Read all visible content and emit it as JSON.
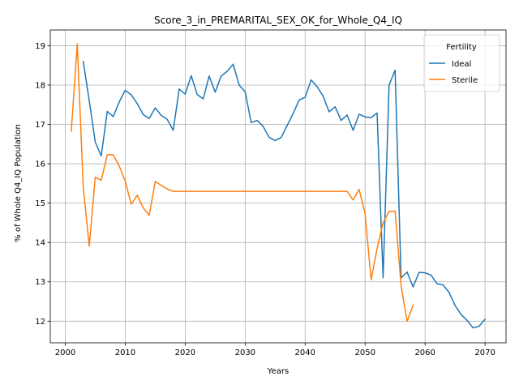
{
  "chart_data": {
    "type": "line",
    "title": "Score_3_in_PREMARITAL_SEX_OK_for_Whole_Q4_IQ",
    "xlabel": "Years",
    "ylabel": "% of Whole Q4_IQ Population",
    "xlim": [
      1997.5,
      2073.5
    ],
    "ylim": [
      11.45,
      19.4
    ],
    "xticks": [
      2000,
      2010,
      2020,
      2030,
      2040,
      2050,
      2060,
      2070
    ],
    "yticks": [
      12,
      13,
      14,
      15,
      16,
      17,
      18,
      19
    ],
    "grid": true,
    "legend": {
      "title": "Fertility",
      "placement": "top-right"
    },
    "series": [
      {
        "name": "Ideal",
        "color": "#1f77b4",
        "x": [
          2003,
          2004,
          2005,
          2006,
          2007,
          2008,
          2009,
          2010,
          2011,
          2012,
          2013,
          2014,
          2015,
          2016,
          2017,
          2018,
          2019,
          2020,
          2021,
          2022,
          2023,
          2024,
          2025,
          2026,
          2027,
          2028,
          2029,
          2030,
          2031,
          2032,
          2033,
          2034,
          2035,
          2036,
          2037,
          2038,
          2039,
          2040,
          2041,
          2042,
          2043,
          2044,
          2045,
          2046,
          2047,
          2048,
          2049,
          2050,
          2051,
          2052,
          2053,
          2054,
          2055,
          2056,
          2057,
          2058,
          2059,
          2060,
          2061,
          2062,
          2063,
          2064,
          2065,
          2066,
          2067,
          2068,
          2069,
          2070
        ],
        "y": [
          18.6,
          17.6,
          16.55,
          16.2,
          17.33,
          17.2,
          17.57,
          17.87,
          17.75,
          17.53,
          17.25,
          17.15,
          17.42,
          17.23,
          17.13,
          16.85,
          17.9,
          17.77,
          18.24,
          17.76,
          17.65,
          18.23,
          17.82,
          18.23,
          18.35,
          18.53,
          18.0,
          17.83,
          17.05,
          17.1,
          16.95,
          16.67,
          16.59,
          16.67,
          16.97,
          17.28,
          17.62,
          17.69,
          18.13,
          17.96,
          17.72,
          17.32,
          17.45,
          17.1,
          17.24,
          16.85,
          17.26,
          17.19,
          17.17,
          17.29,
          13.1,
          18.0,
          18.38,
          13.1,
          13.25,
          12.87,
          13.24,
          13.23,
          13.17,
          12.95,
          12.92,
          12.73,
          12.4,
          12.17,
          12.02,
          11.83,
          11.87,
          12.05
        ]
      },
      {
        "name": "Sterile",
        "color": "#ff7f0e",
        "x": [
          2001,
          2002,
          2003,
          2004,
          2005,
          2006,
          2007,
          2008,
          2009,
          2010,
          2011,
          2012,
          2013,
          2014,
          2015,
          2016,
          2017,
          2018,
          2019,
          2020,
          2021,
          2022,
          2023,
          2024,
          2025,
          2026,
          2027,
          2028,
          2029,
          2030,
          2031,
          2032,
          2033,
          2034,
          2035,
          2036,
          2037,
          2038,
          2039,
          2040,
          2041,
          2042,
          2043,
          2044,
          2045,
          2046,
          2047,
          2048,
          2049,
          2050,
          2051,
          2052,
          2053,
          2054,
          2055,
          2056,
          2057,
          2058
        ],
        "y": [
          16.83,
          19.05,
          15.4,
          13.91,
          15.66,
          15.58,
          16.23,
          16.23,
          15.94,
          15.56,
          14.97,
          15.2,
          14.88,
          14.69,
          15.55,
          15.45,
          15.36,
          15.3,
          15.3,
          15.3,
          15.3,
          15.3,
          15.3,
          15.3,
          15.3,
          15.3,
          15.3,
          15.3,
          15.3,
          15.3,
          15.3,
          15.3,
          15.3,
          15.3,
          15.3,
          15.3,
          15.3,
          15.3,
          15.3,
          15.3,
          15.3,
          15.3,
          15.3,
          15.3,
          15.3,
          15.3,
          15.3,
          15.08,
          15.35,
          14.73,
          13.05,
          13.85,
          14.5,
          14.79,
          14.8,
          12.9,
          12.0,
          12.4
        ]
      }
    ]
  }
}
